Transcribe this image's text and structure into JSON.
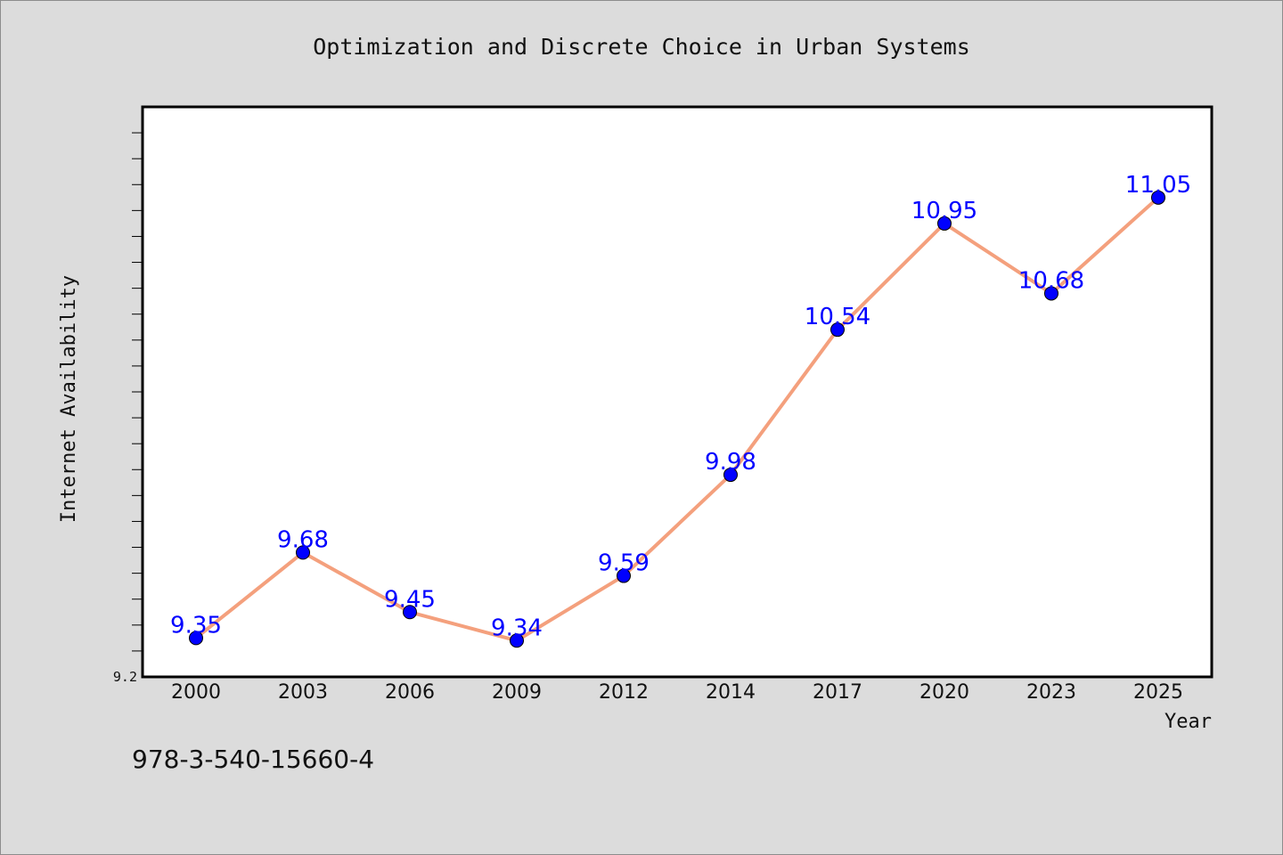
{
  "chart_data": {
    "type": "line",
    "title": "Optimization and Discrete Choice in Urban Systems",
    "xlabel": "Year",
    "ylabel": "Internet Availability",
    "categories": [
      "2000",
      "2003",
      "2006",
      "2009",
      "2012",
      "2014",
      "2017",
      "2020",
      "2023",
      "2025"
    ],
    "series": [
      {
        "values": [
          9.35,
          9.68,
          9.45,
          9.34,
          9.59,
          9.98,
          10.54,
          10.95,
          10.68,
          11.05
        ]
      }
    ],
    "data_labels": [
      "9.35",
      "9.68",
      "9.45",
      "9.34",
      "9.59",
      "9.98",
      "10.54",
      "10.95",
      "10.68",
      "11.05"
    ],
    "ytick_labels": [
      "9.2"
    ],
    "ylim": [
      9.2,
      11.4
    ],
    "ytick_min": 9.2,
    "ytick_step": 0.1,
    "grid": false,
    "line_color": "#f4a07d",
    "marker_color": "#0000ff",
    "label_color": "#0000ff"
  },
  "footer": {
    "isbn": "978-3-540-15660-4"
  }
}
